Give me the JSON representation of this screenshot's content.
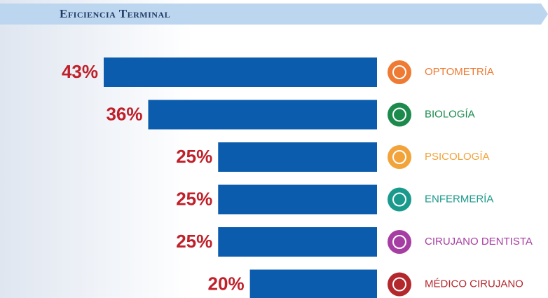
{
  "chart_data": {
    "type": "bar",
    "orientation": "horizontal",
    "title": "Eficiencia Terminal",
    "categories": [
      "OPTOMETRÍA",
      "BIOLOGÍA",
      "PSICOLOGÍA",
      "ENFERMERÍA",
      "CIRUJANO DENTISTA",
      "MÉDICO CIRUJANO"
    ],
    "values": [
      43,
      36,
      25,
      25,
      25,
      20
    ],
    "value_labels": [
      "43%",
      "36%",
      "25%",
      "25%",
      "25%",
      "20%"
    ],
    "color": "#0b5cad",
    "category_colors": [
      "#ee7a33",
      "#1b8a4c",
      "#f2a33a",
      "#1a9a8c",
      "#a63da3",
      "#b3282d"
    ]
  }
}
